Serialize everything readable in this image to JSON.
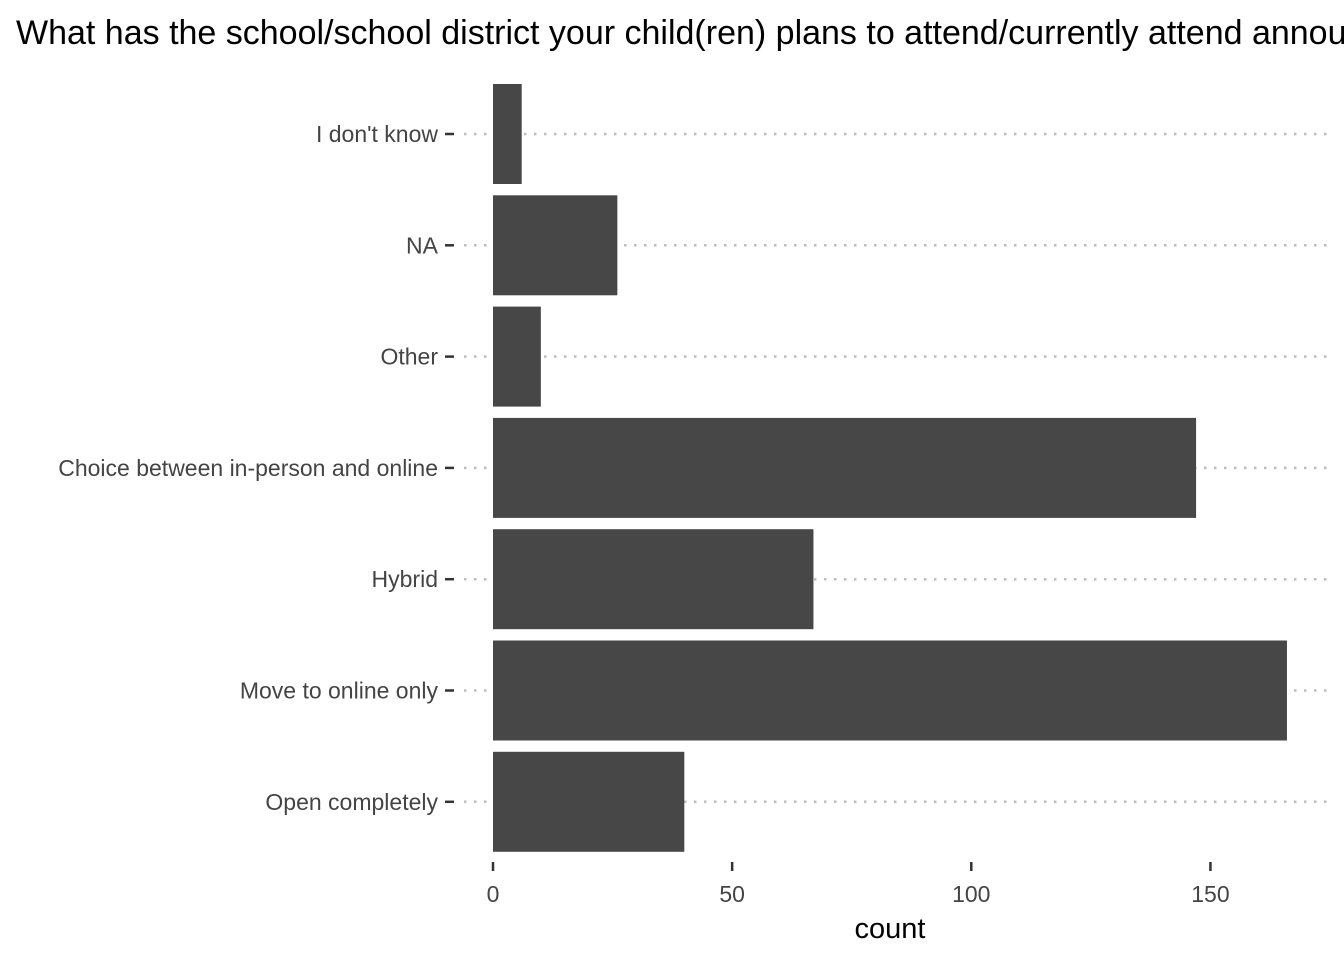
{
  "chart_data": {
    "type": "bar",
    "orientation": "horizontal",
    "title": "What has the school/school district your child(ren) plans to attend/currently attend announced for the fall?",
    "xlabel": "count",
    "ylabel": "",
    "categories": [
      "I don't know",
      "NA",
      "Other",
      "Choice between in-person and online",
      "Hybrid",
      "Move to online only",
      "Open completely"
    ],
    "values": [
      6,
      26,
      10,
      147,
      67,
      166,
      40
    ],
    "xlim": [
      0,
      175
    ],
    "xticks": [
      0,
      50,
      100,
      150
    ],
    "grid": "horizontal-dotted",
    "bar_color": "#474747"
  }
}
